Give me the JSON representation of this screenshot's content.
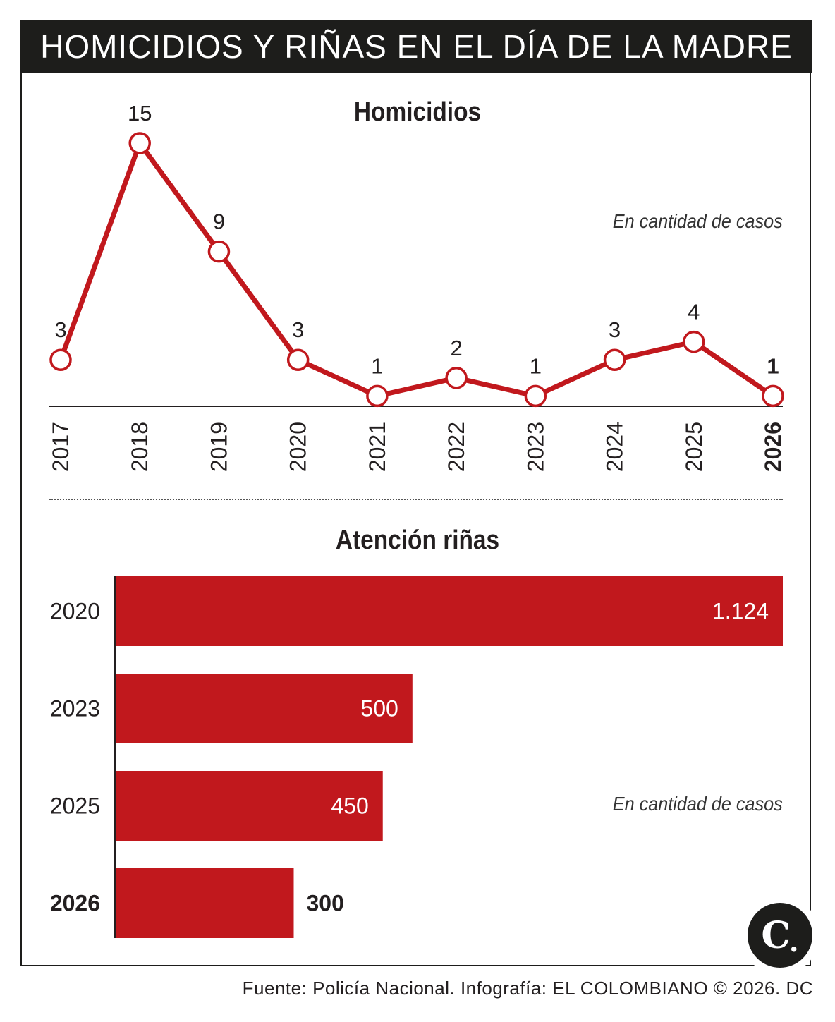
{
  "header": {
    "title": "HOMICIDIOS Y RIÑAS EN EL DÍA DE LA MADRE"
  },
  "chart_data": [
    {
      "type": "line",
      "title": "Homicidios",
      "note": "En cantidad de casos",
      "x": [
        "2017",
        "2018",
        "2019",
        "2020",
        "2021",
        "2022",
        "2023",
        "2024",
        "2025",
        "2026"
      ],
      "series": [
        {
          "values": [
            3,
            15,
            9,
            3,
            1,
            2,
            1,
            3,
            4,
            1
          ]
        }
      ],
      "ylim": [
        0,
        15
      ],
      "highlight": "2026",
      "grid": false,
      "color": "#c1181d"
    },
    {
      "type": "bar",
      "orientation": "horizontal",
      "title": "Atención riñas",
      "note": "En cantidad de casos",
      "categories": [
        "2020",
        "2023",
        "2025",
        "2026"
      ],
      "values": [
        1124,
        500,
        450,
        300
      ],
      "value_labels": [
        "1.124",
        "500",
        "450",
        "300"
      ],
      "xlim": [
        0,
        1124
      ],
      "highlight": "2026",
      "grid": false,
      "color": "#c1181d"
    }
  ],
  "footer": {
    "source": "Fuente: Policía Nacional. Infografía: EL COLOMBIANO © 2026. DC"
  },
  "logo": {
    "letter": "C",
    "dot": "."
  }
}
